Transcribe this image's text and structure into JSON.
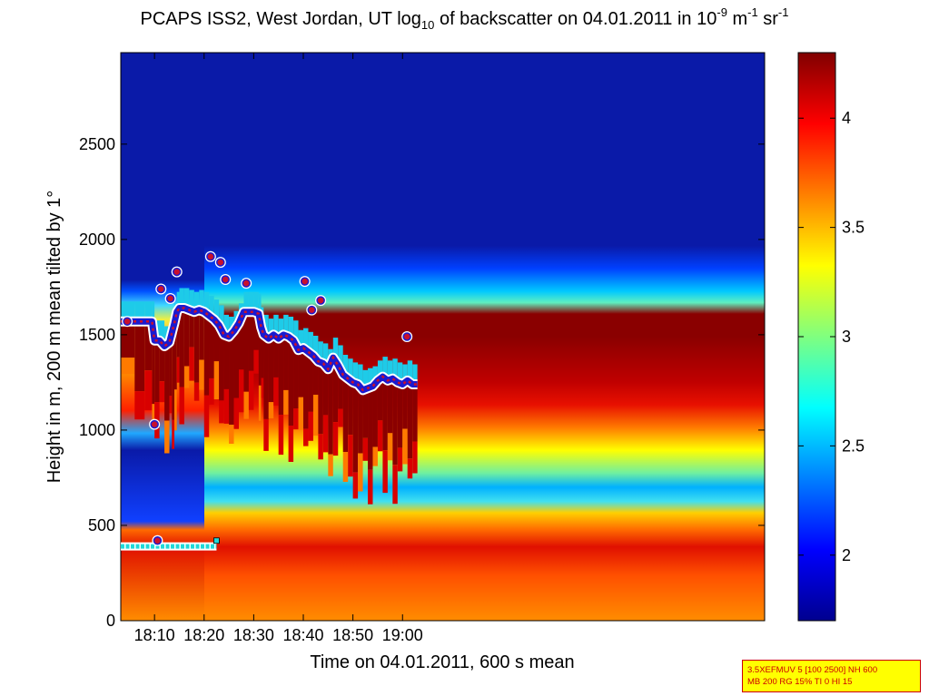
{
  "chart_data": {
    "type": "heatmap",
    "title": {
      "part1": "PCAPS ISS2, West Jordan, UT log",
      "sub": "10",
      "part2": " of backscatter on 04.01.2011 in 10",
      "sup1": "-9",
      "part3": " m",
      "sup2": "-1",
      "part4": " sr",
      "sup3": "-1"
    },
    "xlabel": "Time on 04.01.2011, 600 s mean",
    "ylabel": "Height in m, 200 m mean tilted by 1°",
    "xlim_minutes": [
      63.2,
      193.0
    ],
    "ylim": [
      0,
      2980
    ],
    "x_ticks": [
      {
        "value": 70,
        "label": "18:10"
      },
      {
        "value": 80,
        "label": "18:20"
      },
      {
        "value": 90,
        "label": "18:30"
      },
      {
        "value": 100,
        "label": "18:40"
      },
      {
        "value": 110,
        "label": "18:50"
      },
      {
        "value": 120,
        "label": "19:00"
      }
    ],
    "y_ticks": [
      {
        "value": 0,
        "label": "0"
      },
      {
        "value": 500,
        "label": "500"
      },
      {
        "value": 1000,
        "label": "1000"
      },
      {
        "value": 1500,
        "label": "1500"
      },
      {
        "value": 2000,
        "label": "2000"
      },
      {
        "value": 2500,
        "label": "2500"
      }
    ],
    "colorbar": {
      "range": [
        1.7,
        4.3
      ],
      "ticks": [
        {
          "value": 2,
          "label": "2"
        },
        {
          "value": 2.5,
          "label": "2.5"
        },
        {
          "value": 3,
          "label": "3"
        },
        {
          "value": 3.5,
          "label": "3.5"
        },
        {
          "value": 4,
          "label": "4"
        }
      ]
    },
    "mixing_layer_line": {
      "x": [
        63.2,
        66,
        68,
        69.5,
        70,
        71,
        72,
        73,
        73.5,
        74,
        74.5,
        75,
        76,
        77,
        78,
        79,
        80,
        81,
        82,
        83,
        84,
        85,
        86,
        87,
        88,
        89,
        90,
        91,
        91.5,
        92,
        93,
        94,
        95,
        96,
        97,
        98,
        99,
        100,
        101,
        102,
        103,
        104,
        105,
        106,
        107,
        108,
        109,
        110,
        111,
        112,
        113,
        114,
        115,
        116,
        117,
        118,
        119,
        120,
        121,
        122,
        123
      ],
      "y": [
        1570,
        1570,
        1570,
        1570,
        1470,
        1470,
        1440,
        1460,
        1510,
        1560,
        1620,
        1640,
        1640,
        1630,
        1620,
        1630,
        1620,
        1600,
        1580,
        1550,
        1500,
        1490,
        1520,
        1560,
        1620,
        1620,
        1620,
        1610,
        1540,
        1500,
        1480,
        1500,
        1480,
        1500,
        1490,
        1470,
        1420,
        1430,
        1410,
        1390,
        1360,
        1350,
        1320,
        1380,
        1340,
        1290,
        1270,
        1250,
        1240,
        1210,
        1220,
        1230,
        1260,
        1280,
        1260,
        1270,
        1250,
        1240,
        1260,
        1240,
        1240
      ]
    },
    "layer_points": {
      "x": [
        64.5,
        70,
        70.6,
        71.3,
        73.2,
        74.5,
        81.3,
        83.3,
        84.3,
        88.5,
        100.3,
        101.7,
        103.5,
        120.9
      ],
      "y": [
        1570,
        1030,
        420,
        1740,
        1690,
        1830,
        1910,
        1880,
        1790,
        1770,
        1780,
        1630,
        1680,
        1490
      ]
    },
    "surface_layer": {
      "x_start": 63.2,
      "x_end": 82.5,
      "y": 390,
      "end_y": 420
    }
  },
  "info_box": {
    "line1": "3.5XEFMUV 5 [100 2500] NH 600",
    "line2": "MB 200 RG 15% TI 0 HI 15"
  }
}
